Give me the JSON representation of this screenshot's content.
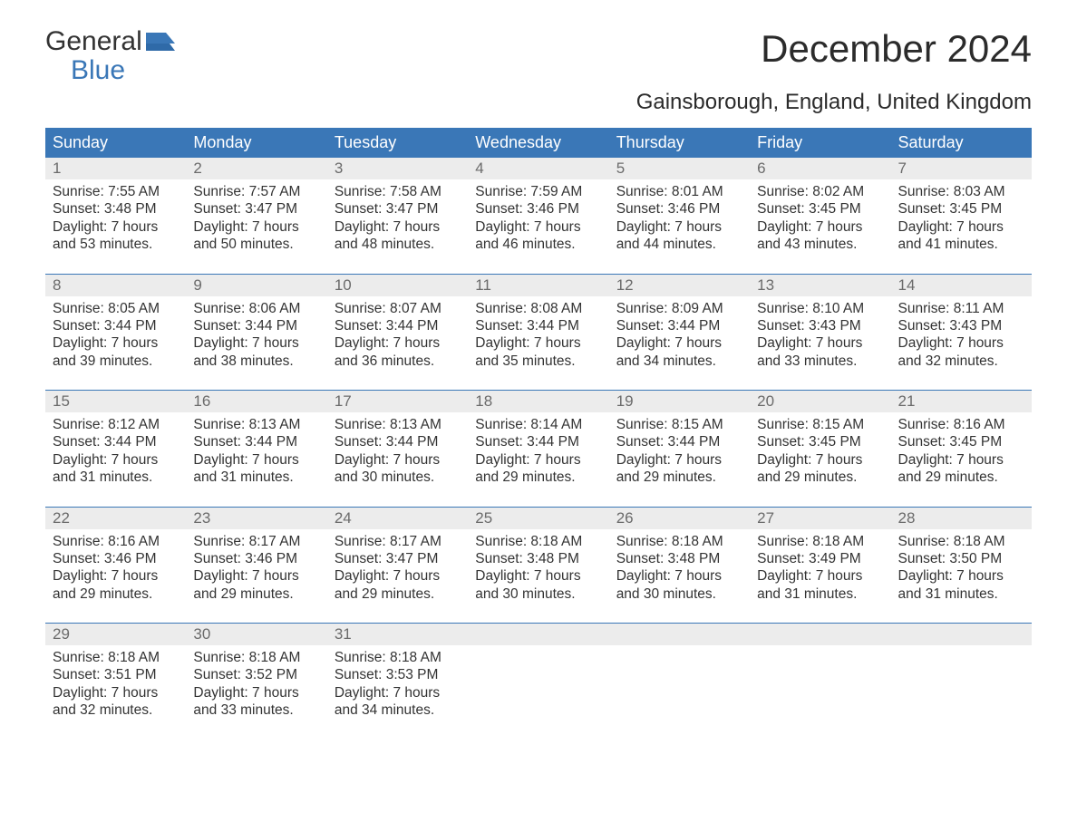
{
  "logo": {
    "word1": "General",
    "word2": "Blue"
  },
  "title": "December 2024",
  "subtitle": "Gainsborough, England, United Kingdom",
  "colors": {
    "brand_blue": "#3a77b7",
    "header_row_bg": "#3a77b7",
    "daynum_bg": "#ececec",
    "daynum_text": "#6b6b6b",
    "body_text": "#333333",
    "background": "#ffffff"
  },
  "font_sizes_pt": {
    "title": 32,
    "subtitle": 18,
    "dayhead": 14,
    "daynum": 13,
    "body": 12
  },
  "day_headers": [
    "Sunday",
    "Monday",
    "Tuesday",
    "Wednesday",
    "Thursday",
    "Friday",
    "Saturday"
  ],
  "weeks": [
    [
      {
        "n": "1",
        "sr": "Sunrise: 7:55 AM",
        "ss": "Sunset: 3:48 PM",
        "d1": "Daylight: 7 hours",
        "d2": "and 53 minutes."
      },
      {
        "n": "2",
        "sr": "Sunrise: 7:57 AM",
        "ss": "Sunset: 3:47 PM",
        "d1": "Daylight: 7 hours",
        "d2": "and 50 minutes."
      },
      {
        "n": "3",
        "sr": "Sunrise: 7:58 AM",
        "ss": "Sunset: 3:47 PM",
        "d1": "Daylight: 7 hours",
        "d2": "and 48 minutes."
      },
      {
        "n": "4",
        "sr": "Sunrise: 7:59 AM",
        "ss": "Sunset: 3:46 PM",
        "d1": "Daylight: 7 hours",
        "d2": "and 46 minutes."
      },
      {
        "n": "5",
        "sr": "Sunrise: 8:01 AM",
        "ss": "Sunset: 3:46 PM",
        "d1": "Daylight: 7 hours",
        "d2": "and 44 minutes."
      },
      {
        "n": "6",
        "sr": "Sunrise: 8:02 AM",
        "ss": "Sunset: 3:45 PM",
        "d1": "Daylight: 7 hours",
        "d2": "and 43 minutes."
      },
      {
        "n": "7",
        "sr": "Sunrise: 8:03 AM",
        "ss": "Sunset: 3:45 PM",
        "d1": "Daylight: 7 hours",
        "d2": "and 41 minutes."
      }
    ],
    [
      {
        "n": "8",
        "sr": "Sunrise: 8:05 AM",
        "ss": "Sunset: 3:44 PM",
        "d1": "Daylight: 7 hours",
        "d2": "and 39 minutes."
      },
      {
        "n": "9",
        "sr": "Sunrise: 8:06 AM",
        "ss": "Sunset: 3:44 PM",
        "d1": "Daylight: 7 hours",
        "d2": "and 38 minutes."
      },
      {
        "n": "10",
        "sr": "Sunrise: 8:07 AM",
        "ss": "Sunset: 3:44 PM",
        "d1": "Daylight: 7 hours",
        "d2": "and 36 minutes."
      },
      {
        "n": "11",
        "sr": "Sunrise: 8:08 AM",
        "ss": "Sunset: 3:44 PM",
        "d1": "Daylight: 7 hours",
        "d2": "and 35 minutes."
      },
      {
        "n": "12",
        "sr": "Sunrise: 8:09 AM",
        "ss": "Sunset: 3:44 PM",
        "d1": "Daylight: 7 hours",
        "d2": "and 34 minutes."
      },
      {
        "n": "13",
        "sr": "Sunrise: 8:10 AM",
        "ss": "Sunset: 3:43 PM",
        "d1": "Daylight: 7 hours",
        "d2": "and 33 minutes."
      },
      {
        "n": "14",
        "sr": "Sunrise: 8:11 AM",
        "ss": "Sunset: 3:43 PM",
        "d1": "Daylight: 7 hours",
        "d2": "and 32 minutes."
      }
    ],
    [
      {
        "n": "15",
        "sr": "Sunrise: 8:12 AM",
        "ss": "Sunset: 3:44 PM",
        "d1": "Daylight: 7 hours",
        "d2": "and 31 minutes."
      },
      {
        "n": "16",
        "sr": "Sunrise: 8:13 AM",
        "ss": "Sunset: 3:44 PM",
        "d1": "Daylight: 7 hours",
        "d2": "and 31 minutes."
      },
      {
        "n": "17",
        "sr": "Sunrise: 8:13 AM",
        "ss": "Sunset: 3:44 PM",
        "d1": "Daylight: 7 hours",
        "d2": "and 30 minutes."
      },
      {
        "n": "18",
        "sr": "Sunrise: 8:14 AM",
        "ss": "Sunset: 3:44 PM",
        "d1": "Daylight: 7 hours",
        "d2": "and 29 minutes."
      },
      {
        "n": "19",
        "sr": "Sunrise: 8:15 AM",
        "ss": "Sunset: 3:44 PM",
        "d1": "Daylight: 7 hours",
        "d2": "and 29 minutes."
      },
      {
        "n": "20",
        "sr": "Sunrise: 8:15 AM",
        "ss": "Sunset: 3:45 PM",
        "d1": "Daylight: 7 hours",
        "d2": "and 29 minutes."
      },
      {
        "n": "21",
        "sr": "Sunrise: 8:16 AM",
        "ss": "Sunset: 3:45 PM",
        "d1": "Daylight: 7 hours",
        "d2": "and 29 minutes."
      }
    ],
    [
      {
        "n": "22",
        "sr": "Sunrise: 8:16 AM",
        "ss": "Sunset: 3:46 PM",
        "d1": "Daylight: 7 hours",
        "d2": "and 29 minutes."
      },
      {
        "n": "23",
        "sr": "Sunrise: 8:17 AM",
        "ss": "Sunset: 3:46 PM",
        "d1": "Daylight: 7 hours",
        "d2": "and 29 minutes."
      },
      {
        "n": "24",
        "sr": "Sunrise: 8:17 AM",
        "ss": "Sunset: 3:47 PM",
        "d1": "Daylight: 7 hours",
        "d2": "and 29 minutes."
      },
      {
        "n": "25",
        "sr": "Sunrise: 8:18 AM",
        "ss": "Sunset: 3:48 PM",
        "d1": "Daylight: 7 hours",
        "d2": "and 30 minutes."
      },
      {
        "n": "26",
        "sr": "Sunrise: 8:18 AM",
        "ss": "Sunset: 3:48 PM",
        "d1": "Daylight: 7 hours",
        "d2": "and 30 minutes."
      },
      {
        "n": "27",
        "sr": "Sunrise: 8:18 AM",
        "ss": "Sunset: 3:49 PM",
        "d1": "Daylight: 7 hours",
        "d2": "and 31 minutes."
      },
      {
        "n": "28",
        "sr": "Sunrise: 8:18 AM",
        "ss": "Sunset: 3:50 PM",
        "d1": "Daylight: 7 hours",
        "d2": "and 31 minutes."
      }
    ],
    [
      {
        "n": "29",
        "sr": "Sunrise: 8:18 AM",
        "ss": "Sunset: 3:51 PM",
        "d1": "Daylight: 7 hours",
        "d2": "and 32 minutes."
      },
      {
        "n": "30",
        "sr": "Sunrise: 8:18 AM",
        "ss": "Sunset: 3:52 PM",
        "d1": "Daylight: 7 hours",
        "d2": "and 33 minutes."
      },
      {
        "n": "31",
        "sr": "Sunrise: 8:18 AM",
        "ss": "Sunset: 3:53 PM",
        "d1": "Daylight: 7 hours",
        "d2": "and 34 minutes."
      },
      null,
      null,
      null,
      null
    ]
  ]
}
